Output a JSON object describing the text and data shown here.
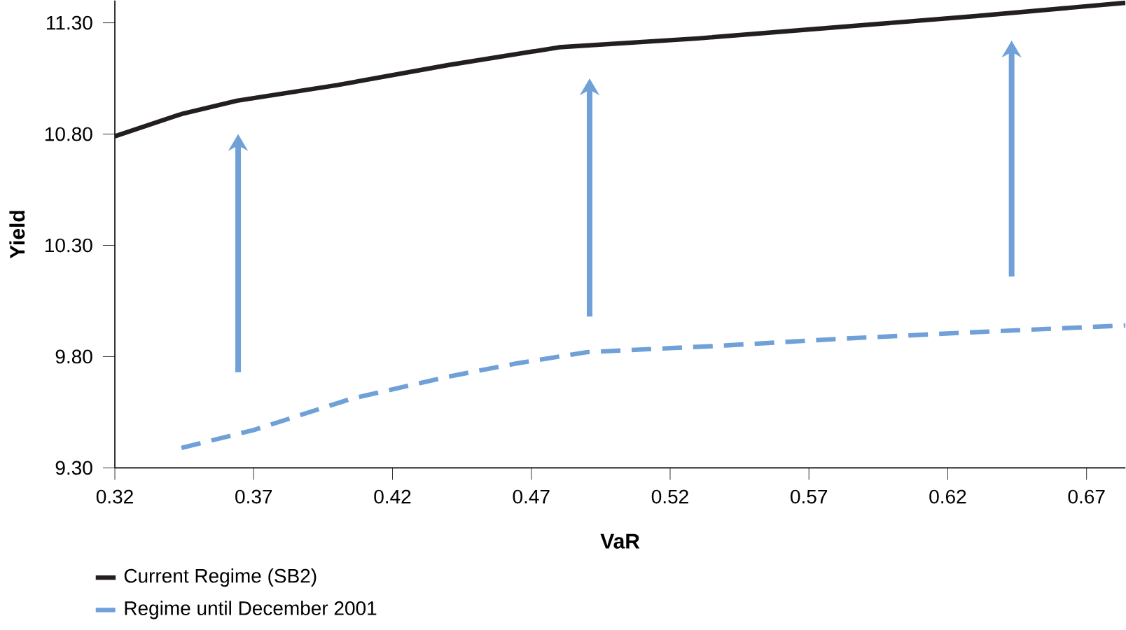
{
  "chart_data": {
    "type": "line",
    "xlabel": "VaR",
    "ylabel": "Yield",
    "xlim": [
      0.32,
      0.684
    ],
    "ylim": [
      9.3,
      11.4
    ],
    "xticks": [
      0.32,
      0.37,
      0.42,
      0.47,
      0.52,
      0.57,
      0.62,
      0.67
    ],
    "yticks": [
      {
        "value": 9.3,
        "label": "9.30"
      },
      {
        "value": 9.8,
        "label": "9.80"
      },
      {
        "value": 10.3,
        "label": "10.30"
      },
      {
        "value": 10.8,
        "label": "10.80"
      },
      {
        "value": 11.3,
        "label": "11.30"
      }
    ],
    "grid": false,
    "legend": "bottom left",
    "marker": "none",
    "series": [
      {
        "name": "Current Regime (SB2)",
        "color": "#231f20",
        "line_style": "solid",
        "x": [
          0.32,
          0.344,
          0.364,
          0.4,
          0.44,
          0.48,
          0.53,
          0.58,
          0.63,
          0.684
        ],
        "values": [
          10.79,
          10.89,
          10.95,
          11.02,
          11.11,
          11.19,
          11.23,
          11.28,
          11.33,
          11.39
        ]
      },
      {
        "name": "Regime until December 2001",
        "color": "#6fa0d8",
        "line_style": "dashed",
        "x": [
          0.344,
          0.37,
          0.405,
          0.44,
          0.465,
          0.49,
          0.54,
          0.581,
          0.63,
          0.684
        ],
        "values": [
          9.39,
          9.47,
          9.61,
          9.71,
          9.77,
          9.82,
          9.85,
          9.88,
          9.91,
          9.94
        ]
      }
    ]
  }
}
